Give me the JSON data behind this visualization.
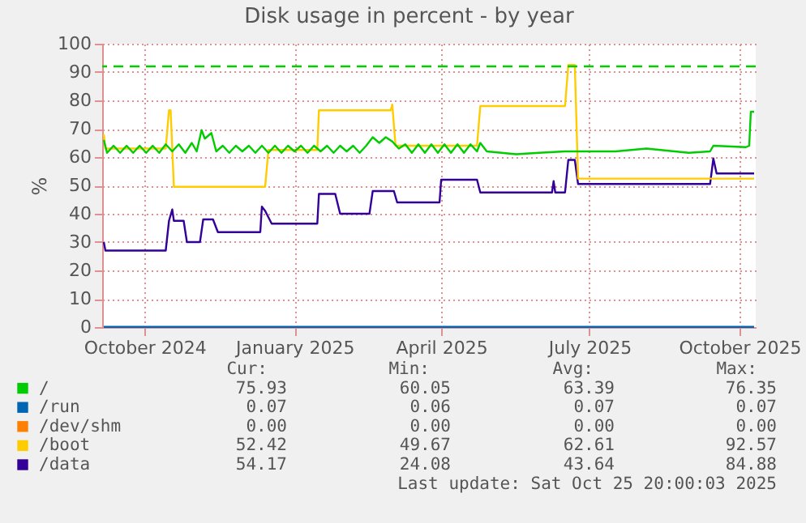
{
  "chart_data": {
    "type": "line",
    "title": "Disk usage in percent - by year",
    "ylabel": "%",
    "xlim": [
      "2024-09-20",
      "2025-10-26"
    ],
    "xticks": [
      {
        "value": "2024-10-16",
        "label": "October 2024"
      },
      {
        "value": "2025-01-16",
        "label": "January 2025"
      },
      {
        "value": "2025-04-16",
        "label": "April 2025"
      },
      {
        "value": "2025-07-16",
        "label": "July 2025"
      },
      {
        "value": "2025-10-16",
        "label": "October 2025"
      }
    ],
    "ylim": [
      0,
      100
    ],
    "yticks": [
      0,
      10,
      20,
      30,
      40,
      50,
      60,
      70,
      80,
      90,
      100
    ],
    "grid": true,
    "legend": "bottom",
    "ref_lines": [
      {
        "axis": "y",
        "value": 92,
        "color": "#00cc00",
        "line_style": "dashed"
      }
    ],
    "series": [
      {
        "name": "/",
        "color": "#00cc00",
        "x": [
          "2024-09-21",
          "2024-09-23",
          "2024-09-27",
          "2024-10-01",
          "2024-10-05",
          "2024-10-09",
          "2024-10-13",
          "2024-10-17",
          "2024-10-21",
          "2024-10-25",
          "2024-10-29",
          "2024-11-02",
          "2024-11-06",
          "2024-11-10",
          "2024-11-14",
          "2024-11-17",
          "2024-11-20",
          "2024-11-22",
          "2024-11-26",
          "2024-11-29",
          "2024-12-03",
          "2024-12-07",
          "2024-12-11",
          "2024-12-15",
          "2024-12-19",
          "2024-12-23",
          "2024-12-27",
          "2024-12-31",
          "2025-01-04",
          "2025-01-08",
          "2025-01-12",
          "2025-01-16",
          "2025-01-20",
          "2025-01-24",
          "2025-01-28",
          "2025-02-01",
          "2025-02-05",
          "2025-02-09",
          "2025-02-13",
          "2025-02-17",
          "2025-02-21",
          "2025-02-25",
          "2025-03-01",
          "2025-03-05",
          "2025-03-09",
          "2025-03-13",
          "2025-03-17",
          "2025-03-21",
          "2025-03-25",
          "2025-03-29",
          "2025-04-02",
          "2025-04-06",
          "2025-04-10",
          "2025-04-14",
          "2025-04-18",
          "2025-04-22",
          "2025-04-26",
          "2025-04-30",
          "2025-05-04",
          "2025-05-08",
          "2025-05-10",
          "2025-05-14",
          "2025-06-01",
          "2025-06-15",
          "2025-07-01",
          "2025-08-01",
          "2025-08-20",
          "2025-09-15",
          "2025-09-28",
          "2025-09-30",
          "2025-10-20",
          "2025-10-22",
          "2025-10-23",
          "2025-10-25"
        ],
        "values": [
          66,
          61.5,
          64,
          61.5,
          64,
          61.5,
          64,
          61.5,
          64,
          61.5,
          64.5,
          62,
          64.5,
          61.5,
          65,
          62,
          69.5,
          66.5,
          68.5,
          62,
          64,
          61.5,
          64,
          62,
          64,
          61.5,
          64,
          61.5,
          64,
          61.5,
          64,
          62,
          64,
          61.5,
          64,
          62,
          64,
          61.5,
          64,
          62,
          64,
          61.5,
          64,
          67,
          65,
          67,
          65.5,
          63,
          64.5,
          61.5,
          64.5,
          61.5,
          64.5,
          61.5,
          64.5,
          61.5,
          64.5,
          61.5,
          64.5,
          62,
          65,
          62,
          61,
          61.5,
          62,
          62,
          63,
          61.5,
          62,
          64,
          63.5,
          64,
          76,
          76
        ]
      },
      {
        "name": "/run",
        "color": "#0066b3",
        "x": [
          "2024-09-21",
          "2025-10-25"
        ],
        "values": [
          0.07,
          0.07
        ]
      },
      {
        "name": "/dev/shm",
        "color": "#ff8000"
      },
      {
        "name": "/boot",
        "color": "#ffcc00",
        "x": [
          "2024-09-21",
          "2024-09-22",
          "2024-10-29",
          "2024-10-31",
          "2024-11-01",
          "2024-11-03",
          "2024-12-29",
          "2024-12-31",
          "2025-01-30",
          "2025-01-31",
          "2025-03-16",
          "2025-03-17",
          "2025-03-19",
          "2025-05-08",
          "2025-05-10",
          "2025-07-01",
          "2025-07-03",
          "2025-07-07",
          "2025-07-09",
          "2025-10-25"
        ],
        "values": [
          68,
          63,
          63,
          76.5,
          76.5,
          49.5,
          49.5,
          62.5,
          62.5,
          76.5,
          76.5,
          78.5,
          64,
          64,
          78,
          78,
          92.5,
          92.5,
          52.4,
          52.4
        ]
      },
      {
        "name": "/data",
        "color": "#330099",
        "x": [
          "2024-09-21",
          "2024-09-22",
          "2024-10-29",
          "2024-10-31",
          "2024-11-02",
          "2024-11-03",
          "2024-11-09",
          "2024-11-11",
          "2024-11-19",
          "2024-11-21",
          "2024-11-27",
          "2024-11-30",
          "2024-12-26",
          "2024-12-27",
          "2024-12-29",
          "2025-01-02",
          "2025-01-30",
          "2025-01-31",
          "2025-02-10",
          "2025-02-13",
          "2025-03-03",
          "2025-03-05",
          "2025-03-18",
          "2025-03-20",
          "2025-04-15",
          "2025-04-16",
          "2025-05-08",
          "2025-05-10",
          "2025-06-23",
          "2025-06-24",
          "2025-06-25",
          "2025-07-01",
          "2025-07-03",
          "2025-07-07",
          "2025-07-09",
          "2025-09-28",
          "2025-09-30",
          "2025-10-02",
          "2025-10-25"
        ],
        "values": [
          30,
          27,
          27,
          37.5,
          41.5,
          37.5,
          37.5,
          30,
          30,
          38,
          38,
          33.5,
          33.5,
          42.5,
          41,
          36.5,
          36.5,
          47,
          47,
          40,
          40,
          48,
          48,
          44,
          44,
          52,
          52,
          47.5,
          47.5,
          51.5,
          47.5,
          47.5,
          59,
          59,
          50.5,
          50.5,
          59.5,
          54.2,
          54.2
        ]
      }
    ],
    "annotations": [
      "Cur:",
      "Min:",
      "Avg:",
      "Max:",
      "75.93",
      "60.05",
      "63.39",
      "76.35",
      "0.07",
      "0.06",
      "0.07",
      "0.07",
      "0.00",
      "0.00",
      "0.00",
      "0.00",
      "52.42",
      "49.67",
      "62.61",
      "92.57",
      "54.17",
      "24.08",
      "43.64",
      "84.88",
      "Last update: Sat Oct 25 20:00:03 2025"
    ]
  }
}
